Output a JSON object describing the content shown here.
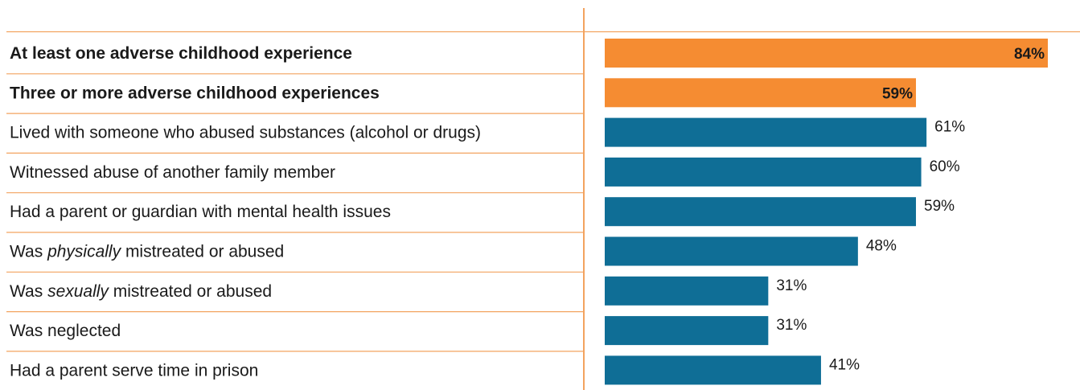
{
  "chart_data": {
    "type": "bar",
    "orientation": "horizontal",
    "xlim": [
      0,
      100
    ],
    "categories": [
      {
        "label": "At least one adverse childhood experience",
        "value": 84,
        "value_label": "84%",
        "group": "summary"
      },
      {
        "label": "Three or more adverse childhood experiences",
        "value": 59,
        "value_label": "59%",
        "group": "summary"
      },
      {
        "label": "Lived with someone who abused substances (alcohol or drugs)",
        "value": 61,
        "value_label": "61%",
        "group": "detail"
      },
      {
        "label": "Witnessed abuse of another family member",
        "value": 60,
        "value_label": "60%",
        "group": "detail"
      },
      {
        "label": "Had a parent or guardian with mental health issues",
        "value": 59,
        "value_label": "59%",
        "group": "detail"
      },
      {
        "label": "Was physically mistreated or abused",
        "value": 48,
        "value_label": "48%",
        "group": "detail",
        "label_parts": [
          "Was ",
          "physically",
          " mistreated or abused"
        ]
      },
      {
        "label": "Was sexually mistreated or abused",
        "value": 31,
        "value_label": "31%",
        "group": "detail",
        "label_parts": [
          "Was ",
          "sexually",
          " mistreated or abused"
        ]
      },
      {
        "label": "Was neglected",
        "value": 31,
        "value_label": "31%",
        "group": "detail"
      },
      {
        "label": "Had a parent serve time in prison",
        "value": 41,
        "value_label": "41%",
        "group": "detail"
      }
    ],
    "colors": {
      "summary": "#f58c32",
      "detail": "#0f6e96",
      "rule": "#f3a35f"
    },
    "grid": false,
    "legend": "none"
  }
}
